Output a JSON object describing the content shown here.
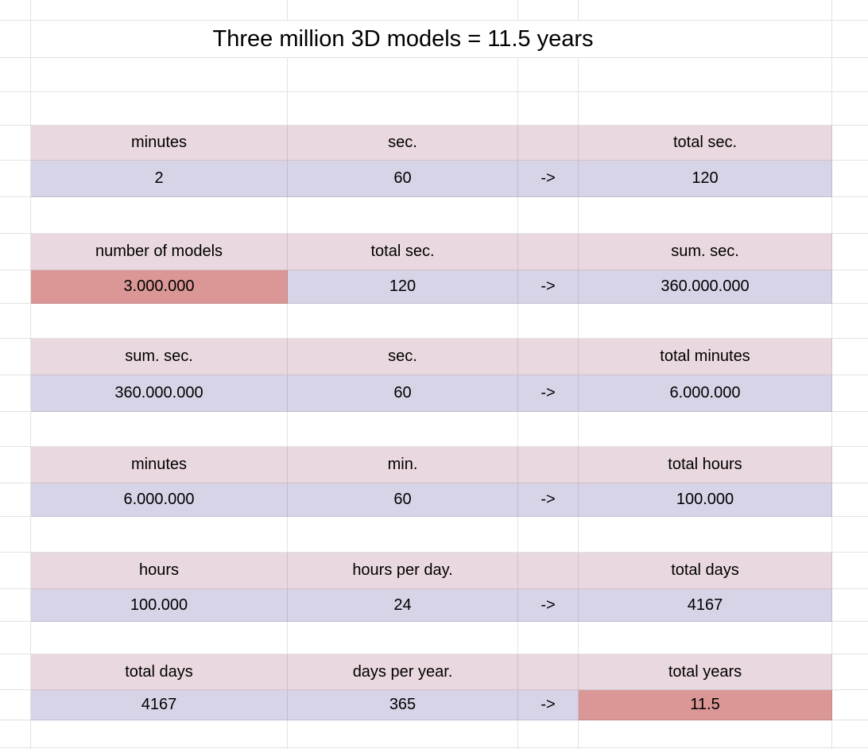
{
  "sheet": {
    "title": "Three million 3D models = 11.5 years"
  },
  "colors": {
    "header_bg": "#e9d8df",
    "value_bg": "#d8d4e8",
    "highlight_bg": "#da9795",
    "gridline": "#e2e2e2",
    "text": "#000000"
  },
  "blocks": [
    {
      "header": [
        "minutes",
        "sec.",
        "",
        "total sec."
      ],
      "value": [
        "2",
        "60",
        "->",
        "120"
      ],
      "value_highlight": [
        false,
        false,
        false,
        false
      ]
    },
    {
      "header": [
        "number of models",
        "total sec.",
        "",
        "sum. sec."
      ],
      "value": [
        "3.000.000",
        "120",
        "->",
        "360.000.000"
      ],
      "value_highlight": [
        true,
        false,
        false,
        false
      ]
    },
    {
      "header": [
        "sum. sec.",
        "sec.",
        "",
        "total minutes"
      ],
      "value": [
        "360.000.000",
        "60",
        "->",
        "6.000.000"
      ],
      "value_highlight": [
        false,
        false,
        false,
        false
      ]
    },
    {
      "header": [
        "minutes",
        "min.",
        "",
        "total hours"
      ],
      "value": [
        "6.000.000",
        "60",
        "->",
        "100.000"
      ],
      "value_highlight": [
        false,
        false,
        false,
        false
      ]
    },
    {
      "header": [
        "hours",
        "hours per day.",
        "",
        "total days"
      ],
      "value": [
        "100.000",
        "24",
        "->",
        "4167"
      ],
      "value_highlight": [
        false,
        false,
        false,
        false
      ]
    },
    {
      "header": [
        "total days",
        "days per year.",
        "",
        "total years"
      ],
      "value": [
        "4167",
        "365",
        "->",
        "11.5"
      ],
      "value_highlight": [
        false,
        false,
        false,
        true
      ]
    }
  ]
}
